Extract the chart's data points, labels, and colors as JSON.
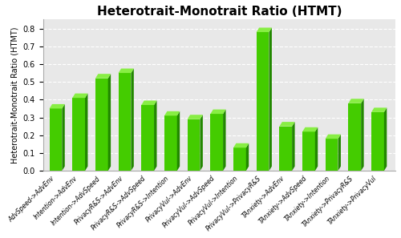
{
  "title": "Heterotrait-Monotrait Ratio (HTMT)",
  "ylabel": "Heterotrait-Monotrait Ratio (HTMT)",
  "categories": [
    "AdvSpeed->AdvEnv",
    "Intention->AdvEnv",
    "Intention->AdvSpeed",
    "PrivacyR&S->AdvEnv",
    "PrivacyR&S->AdvSpeed",
    "PrivacyR&S->Intention",
    "PrivacyVul->AdvEnv",
    "PrivacyVul->AdvSpeed",
    "PrivacyVul->Intention",
    "PrivacyVul->PrivacyR&S",
    "TAnxiety->AdvEnv",
    "TAnxiety->AdvSpeed",
    "TAnxiety->Intention",
    "TAnxiety->PrivacyR&S",
    "TAnxiety->PrivacyVul"
  ],
  "values": [
    0.35,
    0.41,
    0.52,
    0.55,
    0.37,
    0.31,
    0.29,
    0.32,
    0.13,
    0.78,
    0.25,
    0.22,
    0.18,
    0.38,
    0.33
  ],
  "bar_face_color": "#44cc00",
  "bar_side_color": "#228800",
  "bar_top_color": "#88ee44",
  "ylim": [
    0,
    0.85
  ],
  "yticks": [
    0,
    0.1,
    0.2,
    0.3,
    0.4,
    0.5,
    0.6,
    0.7,
    0.8
  ],
  "background_color": "#ffffff",
  "plot_bg_color": "#e8e8e8",
  "grid_color": "#ffffff",
  "title_fontsize": 11,
  "label_fontsize": 5.5,
  "ylabel_fontsize": 7,
  "ytick_fontsize": 7
}
